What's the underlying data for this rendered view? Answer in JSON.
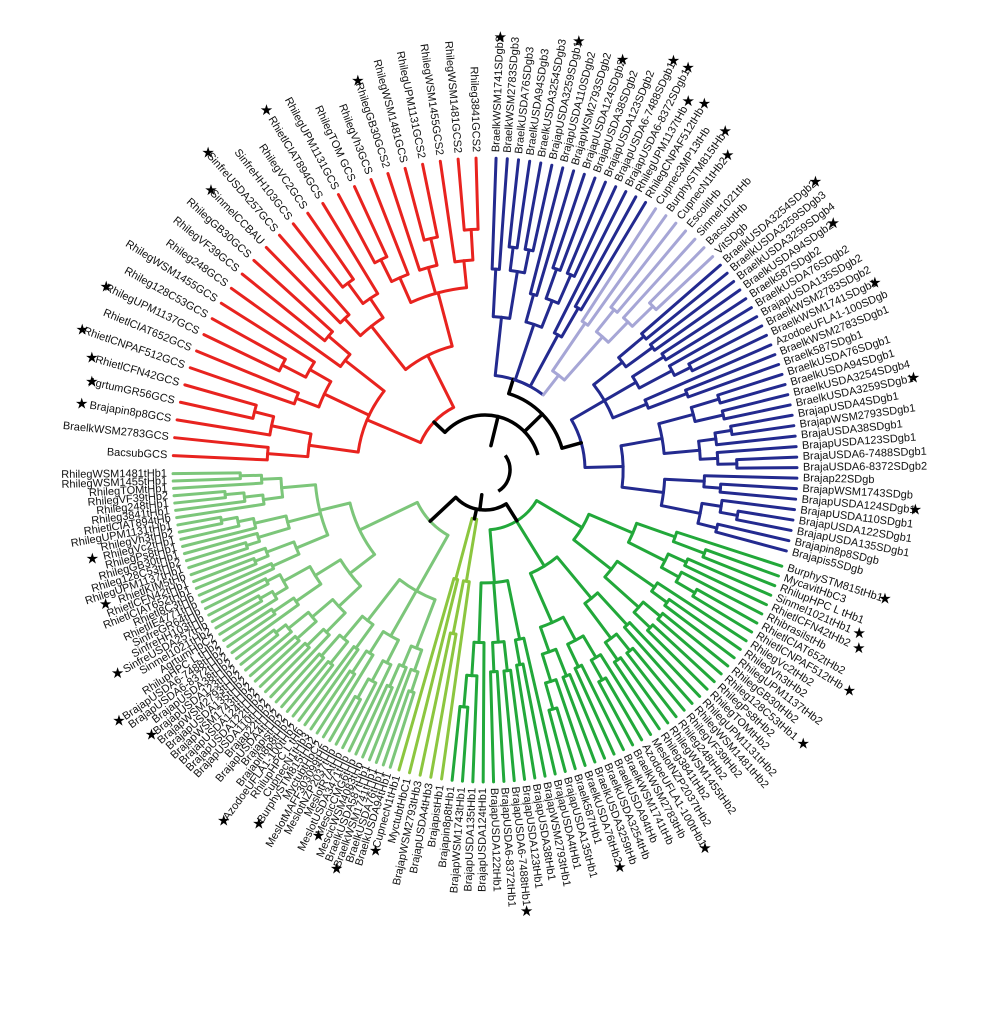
{
  "colors": {
    "root": "#000000",
    "red": "#e8231f",
    "navy": "#232a8f",
    "lavender": "#a6a6d6",
    "light_green": "#7cc67a",
    "lime": "#8cc63f",
    "mid_green": "#22a83a",
    "star": "#000000"
  },
  "star_symbol": "★",
  "clades": [
    {
      "id": "red-clade",
      "color": "red",
      "leaves": [
        {
          "label": "BacsubGCS",
          "star": false
        },
        {
          "label": "BraelkWSM2783GCS",
          "star": false
        },
        {
          "label": "Brajapin8p8GCS",
          "star": true
        },
        {
          "label": "AgrtumGR56GCS",
          "star": true
        },
        {
          "label": "RhietlCFN42GCS",
          "star": true
        },
        {
          "label": "RhietlCNPAF512GCS",
          "star": true
        },
        {
          "label": "RhietlCIAT652GCS",
          "star": false
        },
        {
          "label": "RhilegUPM1137GCS",
          "star": true
        },
        {
          "label": "Rhileg128C53GCS",
          "star": false
        },
        {
          "label": "RhilegWSM1455GCS",
          "star": false
        },
        {
          "label": "Rhileg248GCS",
          "star": false
        },
        {
          "label": "RhilegVF39GCS",
          "star": false
        },
        {
          "label": "RhilegGB30GCS",
          "star": false
        },
        {
          "label": "SinmelCCBAU",
          "star": true
        },
        {
          "label": "SinfreUSDA257GCS",
          "star": true
        },
        {
          "label": "SinfreHH103GCS",
          "star": false
        },
        {
          "label": "RhilegVC2GCS",
          "star": false
        },
        {
          "label": "RhietlCIAT894GCS",
          "star": true
        },
        {
          "label": "RhilegUPM1131GCS",
          "star": false
        },
        {
          "label": "RhilegTOM GCS",
          "star": false
        },
        {
          "label": "RhilegVh3GCS",
          "star": false
        },
        {
          "label": "RhilegGB30GCS2",
          "star": true
        },
        {
          "label": "RhilegWSM1481GCS",
          "star": false
        },
        {
          "label": "RhilegUPM1131GCS2",
          "star": false
        },
        {
          "label": "RhilegWSM1455GCS2",
          "star": false
        },
        {
          "label": "RhilegWSM1481GCS2",
          "star": false
        },
        {
          "label": "Rhileg3841GCS2",
          "star": false
        }
      ]
    },
    {
      "id": "navy-clade-upper",
      "color": "navy",
      "leaves": [
        {
          "label": "BraelkWSM1741SDgb2",
          "star": true
        },
        {
          "label": "BraelkWSM2783SDgb3",
          "star": false
        },
        {
          "label": "BraelkUSDA76SDgb3",
          "star": false
        },
        {
          "label": "BraelkUSDA94SDgb3",
          "star": false
        },
        {
          "label": "BraelkUSDA3254SDgb3",
          "star": false
        },
        {
          "label": "BrajapUSDA3259SDgb1",
          "star": true
        },
        {
          "label": "BrajapUSDA110SDgb2",
          "star": false
        },
        {
          "label": "BrajapWSM2793SDgb2",
          "star": false
        },
        {
          "label": "BrajapUSDA124SDgb2",
          "star": true
        },
        {
          "label": "BrajapUSDA38SDgb2",
          "star": false
        },
        {
          "label": "BrajapUSDA123SDgb2",
          "star": false
        },
        {
          "label": "BrajapUSDA6-7488SDgb1",
          "star": true
        },
        {
          "label": "BrajapUSDA6-8372SDgb1",
          "star": true
        },
        {
          "label": "RhilegUPM1137tHb",
          "star": true
        },
        {
          "label": "RhilegCNPAF512tHb",
          "star": true
        }
      ]
    },
    {
      "id": "lavender-clade",
      "color": "lavender",
      "leaves": [
        {
          "label": "Cupnec3MP13tHb",
          "star": false
        },
        {
          "label": "BurphySTM815tHb",
          "star": true
        },
        {
          "label": "CupnecN1tHb2",
          "star": true
        },
        {
          "label": "EscolitHb",
          "star": false
        },
        {
          "label": "Sinmel1021tHb",
          "star": false
        },
        {
          "label": "BacsubtHb",
          "star": false
        },
        {
          "label": "VitSDgb",
          "star": false
        }
      ]
    },
    {
      "id": "navy-clade-lower",
      "color": "navy",
      "leaves": [
        {
          "label": "BraelkUSDA3254SDgb2",
          "star": true
        },
        {
          "label": "BraelkUSDA3259SDgb3",
          "star": false
        },
        {
          "label": "BraelkUSDA3259SDgb4",
          "star": false
        },
        {
          "label": "BraelkUSDA94SDgb2",
          "star": true
        },
        {
          "label": "Braelk587SDgb2",
          "star": false
        },
        {
          "label": "BraelkUSDA76SDgb2",
          "star": false
        },
        {
          "label": "BrajapUSDA135SDgb2",
          "star": false
        },
        {
          "label": "BraelkWSM2783SDgb2",
          "star": false
        },
        {
          "label": "BraelkWSM1741SDgb1",
          "star": true
        },
        {
          "label": "AzodoeUFLA1-100SDgb",
          "star": false
        },
        {
          "label": "BraelkWSM2783SDgb1",
          "star": false
        },
        {
          "label": "Braelk587SDgb1",
          "star": false
        },
        {
          "label": "BraelkUSDA76SDgb1",
          "star": false
        },
        {
          "label": "BraelkUSDA94SDgb1",
          "star": false
        },
        {
          "label": "BraelkUSDA3254SDgb4",
          "star": false
        },
        {
          "label": "BraelkUSDA3259SDgb1",
          "star": true
        },
        {
          "label": "BrajapUSDA4SDgb1",
          "star": false
        },
        {
          "label": "BrajapWSM2793SDgb1",
          "star": false
        },
        {
          "label": "BrajaUSDA38SDgb1",
          "star": false
        },
        {
          "label": "BrajapUSDA123SDgb1",
          "star": false
        },
        {
          "label": "BrajaUSDA6-7488SDgb1",
          "star": false
        },
        {
          "label": "BrajaUSDA6-8372SDgb2",
          "star": false
        },
        {
          "label": "Brajap22SDgb",
          "star": false
        },
        {
          "label": "BrajapWSM1743SDgb",
          "star": false
        },
        {
          "label": "BrajapUSDA124SDgb1",
          "star": true
        },
        {
          "label": "BrajapUSDA110SDgb1",
          "star": false
        },
        {
          "label": "BrajapUSDA122SDgb1",
          "star": false
        },
        {
          "label": "BrajapUSDA135SDgb1",
          "star": false
        },
        {
          "label": "Brajapin8p8SDgb",
          "star": false
        },
        {
          "label": "Brajapis5SDgb",
          "star": false
        }
      ]
    },
    {
      "id": "mid-green-clade",
      "color": "mid_green",
      "leaves": [
        {
          "label": "BurphySTM815tHb1",
          "star": true
        },
        {
          "label": "MycavitHbC3",
          "star": false
        },
        {
          "label": "RhilupHPC L tHb1",
          "star": false
        },
        {
          "label": "Sinmel1021tHb1",
          "star": true
        },
        {
          "label": "RhietlCFN42tHb2",
          "star": true
        },
        {
          "label": "RhibrasilstHb",
          "star": false
        },
        {
          "label": "RhietlCIAT652tHb2",
          "star": false
        },
        {
          "label": "RhietlCNPAF512tHb",
          "star": true
        },
        {
          "label": "RhilegVc2tHb2",
          "star": false
        },
        {
          "label": "RhilegVh3tHb2",
          "star": false
        },
        {
          "label": "RhilegUPM1137tHb2",
          "star": false
        },
        {
          "label": "RhilegGB30tHb2",
          "star": false
        },
        {
          "label": "Rhileg128C53tHb1",
          "star": true
        },
        {
          "label": "RhilegPs8tHb2",
          "star": false
        },
        {
          "label": "RhilegTOMtHb2",
          "star": false
        },
        {
          "label": "RhilegUPM1131tHb2",
          "star": false
        },
        {
          "label": "RhilegWSM1481tHb2",
          "star": false
        },
        {
          "label": "RhilegVF39tHb2",
          "star": false
        },
        {
          "label": "Rhileg248tHb2",
          "star": false
        },
        {
          "label": "RhilegWSM1455tHb2",
          "star": false
        },
        {
          "label": "Rhileg3841tHb2",
          "star": false
        },
        {
          "label": "MeslotNZP2037tHb2",
          "star": false
        },
        {
          "label": "AzodoeUFLA1-100tHb1",
          "star": true
        },
        {
          "label": "BraelkWSM2783tHb",
          "star": false
        },
        {
          "label": "BraelkWSM1741tHb",
          "star": false
        },
        {
          "label": "BraelkUSDA94tHb",
          "star": false
        },
        {
          "label": "BraelkUSDA3254tHb",
          "star": false
        },
        {
          "label": "BraelkUSDA3259tHb",
          "star": false
        },
        {
          "label": "BraelkUSDA76tHb2",
          "star": true
        },
        {
          "label": "Braelk587tHb1",
          "star": false
        },
        {
          "label": "BrajapUSDA135tHb1",
          "star": false
        },
        {
          "label": "BrajapUSDA4tHb1",
          "star": false
        },
        {
          "label": "BrajapWSM2793tHb1",
          "star": false
        },
        {
          "label": "BrajapUSDA38tHb1",
          "star": false
        },
        {
          "label": "BrajapUSDA123tHb1",
          "star": false
        },
        {
          "label": "BrajapUSDA6-7488tHb1",
          "star": true
        },
        {
          "label": "BrajapUSDA6-8372tHb1",
          "star": false
        },
        {
          "label": "BrajapUSDA122tHb1",
          "star": false
        },
        {
          "label": "BrajapUSDA124tHb1",
          "star": false
        },
        {
          "label": "BrajapUSDA135tHb1",
          "star": false
        },
        {
          "label": "BrajapWSM1743tHb1",
          "star": false
        },
        {
          "label": "Brajapin8p8tHb1",
          "star": false
        }
      ]
    },
    {
      "id": "lime-clade",
      "color": "lime",
      "leaves": [
        {
          "label": "BrajapistHb1",
          "star": false
        },
        {
          "label": "BrajapUSDA4tHb3",
          "star": false
        },
        {
          "label": "BrajapWSM2793tHb3",
          "star": false
        },
        {
          "label": "MyctubtHbC1",
          "star": false
        },
        {
          "label": "CupnecN1tHb1",
          "star": true
        }
      ]
    },
    {
      "id": "light-green-clade",
      "color": "light_green",
      "leaves": [
        {
          "label": "BraelkUSDA94tHb1",
          "star": false
        },
        {
          "label": "BraelkUSDA76tHb1",
          "star": false
        },
        {
          "label": "BraelkWSM1741tHb1",
          "star": true
        },
        {
          "label": "BraelkUSDA587tHb1",
          "star": false
        },
        {
          "label": "MescicWSM4083tHb",
          "star": false
        },
        {
          "label": "MescicCMG6tHb",
          "star": true
        },
        {
          "label": "MeslotUSDA3471tHb",
          "star": false
        },
        {
          "label": "MeslotR7AtHb",
          "star": false
        },
        {
          "label": "MeslotNZP2037tHb",
          "star": false
        },
        {
          "label": "MeslotMAFF303099tHb",
          "star": false
        },
        {
          "label": "MyctubtHbC2",
          "star": false
        },
        {
          "label": "BurphySTM815tHb2",
          "star": true
        },
        {
          "label": "CupnecN1tHb3",
          "star": false
        },
        {
          "label": "RhilupHPC L tHb",
          "star": false
        },
        {
          "label": "AzodoeUFLA1-100tHb2",
          "star": true
        },
        {
          "label": "Brajapin8p8tHb2",
          "star": false
        },
        {
          "label": "BrajapistHb2",
          "star": false
        },
        {
          "label": "BrajapUSDA4tHb2",
          "star": false
        },
        {
          "label": "Brajap22tHb2",
          "star": false
        },
        {
          "label": "BrajapUSDA110tHb2",
          "star": false
        },
        {
          "label": "BrajapUSDA122tHb2",
          "star": false
        },
        {
          "label": "BrajapUSDA124tHb2",
          "star": false
        },
        {
          "label": "BrajapWSM1743tHb2",
          "star": false
        },
        {
          "label": "BrajapUSDA135tHb2",
          "star": false
        },
        {
          "label": "BrajapWSM2793tHb2",
          "star": false
        },
        {
          "label": "BrajapUSDA123tHb2",
          "star": true
        },
        {
          "label": "BrajapUSDA38tHb2",
          "star": false
        },
        {
          "label": "BrajapUSDA6-8372tHb2",
          "star": false
        },
        {
          "label": "BrajapUSDA6-7488tHb2",
          "star": true
        },
        {
          "label": "RhilupHPC L tHb2",
          "star": false
        },
        {
          "label": "AgrtumHbC2",
          "star": false
        },
        {
          "label": "Sinmel1021tHb2",
          "star": false
        },
        {
          "label": "SinfreUSDA257tHb",
          "star": true
        },
        {
          "label": "SinfreHH103tHb",
          "star": false
        },
        {
          "label": "SinfreGR64tHb",
          "star": false
        },
        {
          "label": "RhietlIE4771tHb",
          "star": false
        },
        {
          "label": "Rhietl8C3tHb",
          "star": false
        },
        {
          "label": "RhietlCIAT652tHb1",
          "star": false
        },
        {
          "label": "RhietlCFN42tHb1",
          "star": false
        },
        {
          "label": "RhietlKIM5tHb",
          "star": true
        },
        {
          "label": "RhilegUPM1137tHb1",
          "star": false
        },
        {
          "label": "Rhileg128C53tHb2",
          "star": false
        },
        {
          "label": "RhilegGB30tHb1",
          "star": false
        },
        {
          "label": "RhilegPs8tHb1",
          "star": false
        },
        {
          "label": "RhilegVc2tHb1",
          "star": true
        },
        {
          "label": "RhilegVh3tHb2",
          "star": false
        },
        {
          "label": "RhilegUPM1131tHb1",
          "star": false
        },
        {
          "label": "RhietlCIAT894tHb",
          "star": false
        },
        {
          "label": "Rhileg3841tHb1",
          "star": false
        },
        {
          "label": "Rhileg248tHb1",
          "star": false
        },
        {
          "label": "RhilegVF39tHb2",
          "star": false
        },
        {
          "label": "RhilegTOMtHb1",
          "star": false
        },
        {
          "label": "RhilegWSM1455tHb1",
          "star": false
        },
        {
          "label": "RhilegWSM1481tHb1",
          "star": false
        }
      ]
    }
  ]
}
